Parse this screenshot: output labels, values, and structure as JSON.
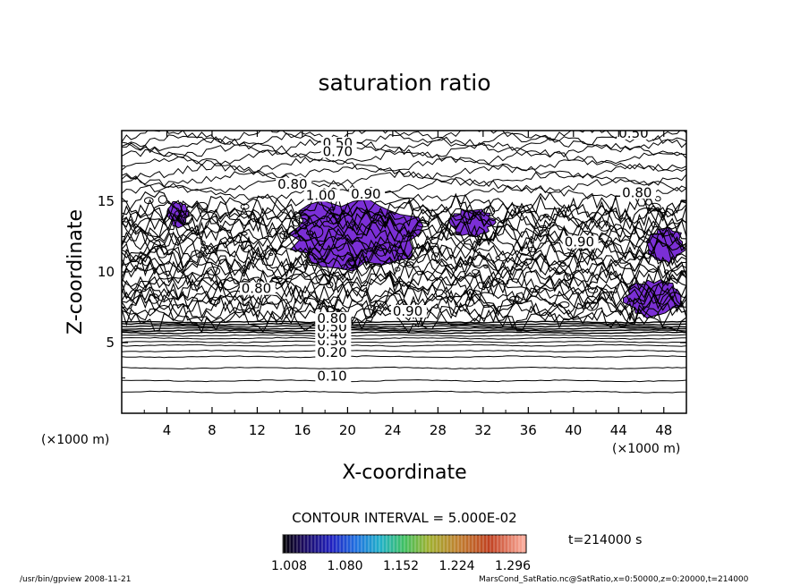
{
  "chart_data": {
    "type": "contour",
    "title": "saturation ratio",
    "xlabel": "X-coordinate",
    "ylabel": "Z-coordinate",
    "x_unit": "(×1000 m)",
    "y_unit": "(×1000 m)",
    "xlim": [
      0,
      50
    ],
    "ylim": [
      0,
      20
    ],
    "x_ticks": [
      4,
      8,
      12,
      16,
      20,
      24,
      28,
      32,
      36,
      40,
      44,
      48
    ],
    "y_ticks": [
      5,
      10,
      15
    ],
    "contour_interval_text": "CONTOUR INTERVAL = 5.000E-02",
    "time_label": "t=214000 s",
    "colorbar": {
      "tick_labels": [
        "1.008",
        "1.080",
        "1.152",
        "1.224",
        "1.296"
      ]
    },
    "contour_labels": [
      {
        "text": "0.10",
        "x": 17.3,
        "z": 2.3
      },
      {
        "text": "0.20",
        "x": 17.3,
        "z": 4.0
      },
      {
        "text": "0.30",
        "x": 17.3,
        "z": 4.8
      },
      {
        "text": "0.40",
        "x": 17.3,
        "z": 5.3
      },
      {
        "text": "0.50",
        "x": 17.3,
        "z": 5.8
      },
      {
        "text": "0.80",
        "x": 17.3,
        "z": 6.4
      },
      {
        "text": "0.50",
        "x": 17.8,
        "z": 18.8
      },
      {
        "text": "0.70",
        "x": 17.8,
        "z": 18.2
      },
      {
        "text": "0.80",
        "x": 13.8,
        "z": 15.9
      },
      {
        "text": "1.00",
        "x": 16.3,
        "z": 15.1
      },
      {
        "text": "0.90",
        "x": 20.3,
        "z": 15.2
      },
      {
        "text": "0.80",
        "x": 10.6,
        "z": 8.5
      },
      {
        "text": "0.90",
        "x": 39.2,
        "z": 11.8
      },
      {
        "text": "0.80",
        "x": 44.3,
        "z": 15.3
      },
      {
        "text": "0.90",
        "x": 24.0,
        "z": 6.9
      },
      {
        "text": "0.50",
        "x": 44.0,
        "z": 19.5
      }
    ],
    "supersaturated_regions": [
      {
        "name": "central",
        "x_range": [
          14.5,
          26.5
        ],
        "z_range": [
          10.2,
          15.2
        ]
      },
      {
        "name": "right-low",
        "x_range": [
          44.5,
          49.8
        ],
        "z_range": [
          6.8,
          9.5
        ]
      },
      {
        "name": "right-mid",
        "x_range": [
          46.5,
          49.8
        ],
        "z_range": [
          10.5,
          13.2
        ]
      },
      {
        "name": "mid-right",
        "x_range": [
          29.0,
          33.0
        ],
        "z_range": [
          12.5,
          14.5
        ]
      },
      {
        "name": "left",
        "x_range": [
          4.0,
          6.0
        ],
        "z_range": [
          13.2,
          15.0
        ]
      }
    ]
  },
  "footer": {
    "left": "/usr/bin/gpview  2008-11-21",
    "right": "MarsCond_SatRatio.nc@SatRatio,x=0:50000,z=0:20000,t=214000"
  }
}
